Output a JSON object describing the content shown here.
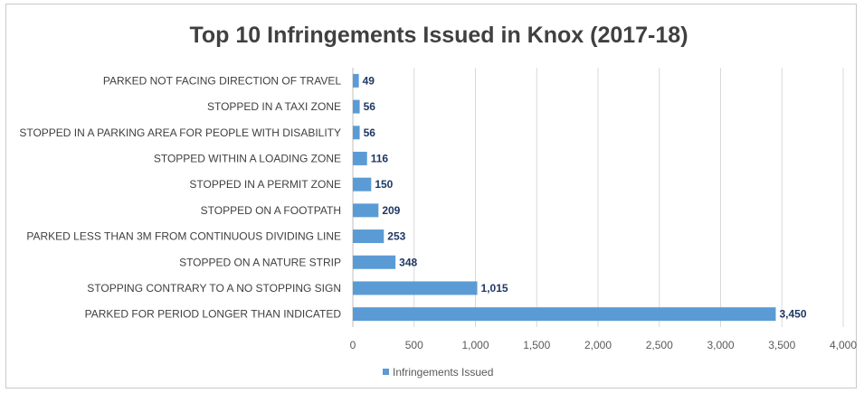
{
  "chart_data": {
    "type": "bar",
    "orientation": "horizontal",
    "title": "Top 10 Infringements Issued in Knox (2017-18)",
    "xlabel": "",
    "ylabel": "",
    "xlim": [
      0,
      4000
    ],
    "x_ticks": [
      "0",
      "500",
      "1,000",
      "1,500",
      "2,000",
      "2,500",
      "3,000",
      "3,500",
      "4,000"
    ],
    "tick_values": [
      0,
      500,
      1000,
      1500,
      2000,
      2500,
      3000,
      3500,
      4000
    ],
    "grid": "vertical",
    "legend_position": "bottom",
    "bar_color": "#5b9bd5",
    "categories": [
      "PARKED NOT FACING DIRECTION OF TRAVEL",
      "STOPPED IN A TAXI ZONE",
      "STOPPED IN A PARKING AREA FOR PEOPLE WITH DISABILITY",
      "STOPPED WITHIN A LOADING ZONE",
      "STOPPED IN A PERMIT ZONE",
      "STOPPED ON A FOOTPATH",
      "PARKED LESS THAN 3M FROM CONTINUOUS DIVIDING LINE",
      "STOPPED ON A NATURE STRIP",
      "STOPPING CONTRARY TO A NO STOPPING SIGN",
      "PARKED FOR PERIOD LONGER THAN INDICATED"
    ],
    "series": [
      {
        "name": "Infringements Issued",
        "values": [
          49,
          56,
          56,
          116,
          150,
          209,
          253,
          348,
          1015,
          3450
        ],
        "labels": [
          "49",
          "56",
          "56",
          "116",
          "150",
          "209",
          "253",
          "348",
          "1,015",
          "3,450"
        ]
      }
    ]
  }
}
